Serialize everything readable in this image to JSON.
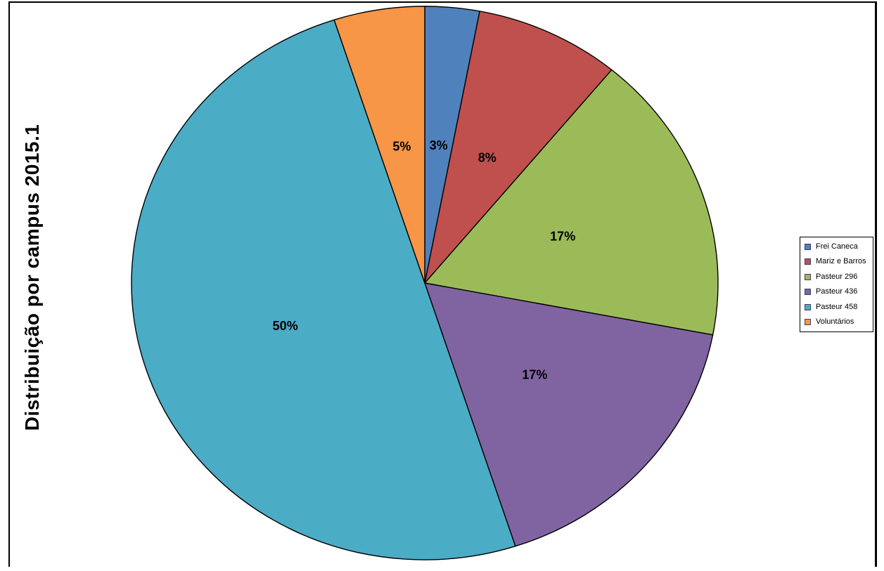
{
  "canvas": {
    "background": "#ffffff",
    "frame_border_color": "#000000"
  },
  "chart_data": {
    "type": "pie",
    "title": "Distribuição por campus 2015.1",
    "legend_position": "right",
    "direction": "clockwise",
    "start_angle_deg": 0,
    "label_color": "#000000",
    "slice_outline_color": "#000000",
    "slices": [
      {
        "label": "Frei Caneca",
        "value": 3,
        "percent_label": "3%",
        "color": "#4F81BD"
      },
      {
        "label": "Mariz e Barros",
        "value": 8,
        "percent_label": "8%",
        "color": "#C0504D"
      },
      {
        "label": "Pasteur 296",
        "value": 17,
        "percent_label": "17%",
        "color": "#9BBB59"
      },
      {
        "label": "Pasteur 436",
        "value": 17,
        "percent_label": "17%",
        "color": "#8064A2"
      },
      {
        "label": "Pasteur 458",
        "value": 50,
        "percent_label": "50%",
        "color": "#4BACC6"
      },
      {
        "label": "Voluntários",
        "value": 5,
        "percent_label": "5%",
        "color": "#F79646"
      }
    ]
  }
}
